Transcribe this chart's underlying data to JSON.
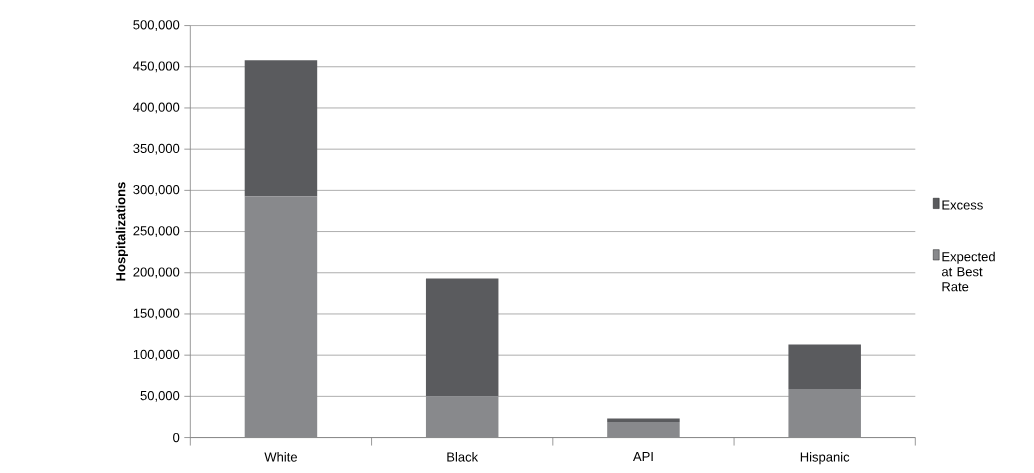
{
  "chart_data": {
    "type": "bar",
    "stacked": true,
    "ylabel": "Hospitalizations",
    "categories": [
      "White",
      "Black",
      "API",
      "Hispanic"
    ],
    "series": [
      {
        "name": "Expected at Best Rate",
        "color": "#88898c",
        "values": [
          293000,
          50000,
          19000,
          59000
        ]
      },
      {
        "name": "Excess",
        "color": "#5a5b5e",
        "values": [
          165000,
          143000,
          4000,
          54000
        ]
      }
    ],
    "ylim": [
      0,
      500000
    ],
    "yticks": [
      {
        "value": 0,
        "label": "0"
      },
      {
        "value": 50000,
        "label": "50,000"
      },
      {
        "value": 100000,
        "label": "100,000"
      },
      {
        "value": 150000,
        "label": "150,000"
      },
      {
        "value": 200000,
        "label": "200,000"
      },
      {
        "value": 250000,
        "label": "250,000"
      },
      {
        "value": 300000,
        "label": "300,000"
      },
      {
        "value": 350000,
        "label": "350,000"
      },
      {
        "value": 400000,
        "label": "400,000"
      },
      {
        "value": 450000,
        "label": "450,000"
      },
      {
        "value": 500000,
        "label": "500,000"
      }
    ],
    "grid": "y",
    "legend": "right"
  }
}
